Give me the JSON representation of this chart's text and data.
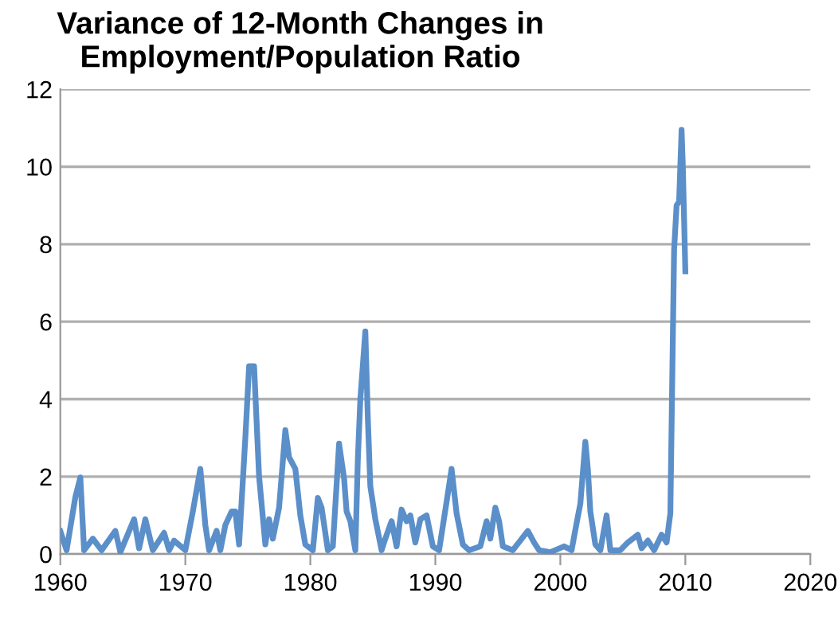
{
  "chart_data": {
    "type": "line",
    "title": "Variance of 12-Month Changes in\nEmployment/Population Ratio",
    "series": [
      {
        "color": "#5b8fc9",
        "x": [
          1960.0,
          1960.5,
          1961.2,
          1961.6,
          1961.9,
          1962.6,
          1963.3,
          1964.4,
          1964.8,
          1965.9,
          1966.3,
          1966.8,
          1967.4,
          1968.3,
          1968.7,
          1969.1,
          1970.0,
          1970.6,
          1971.2,
          1971.6,
          1971.9,
          1972.5,
          1972.8,
          1973.2,
          1973.7,
          1974.0,
          1974.3,
          1974.8,
          1975.1,
          1975.5,
          1975.9,
          1976.4,
          1976.7,
          1977.0,
          1977.5,
          1978.0,
          1978.3,
          1978.8,
          1979.2,
          1979.6,
          1980.2,
          1980.6,
          1980.9,
          1981.4,
          1981.8,
          1982.3,
          1982.7,
          1982.9,
          1983.2,
          1983.6,
          1983.8,
          1984.0,
          1984.4,
          1984.6,
          1984.8,
          1985.2,
          1985.7,
          1986.0,
          1986.5,
          1986.9,
          1987.3,
          1987.7,
          1988.0,
          1988.4,
          1988.8,
          1989.3,
          1989.8,
          1990.3,
          1990.9,
          1991.3,
          1991.7,
          1992.2,
          1992.7,
          1993.6,
          1994.1,
          1994.4,
          1994.8,
          1995.1,
          1995.4,
          1996.2,
          1996.8,
          1997.4,
          1997.9,
          1998.3,
          1999.2,
          2000.3,
          2000.9,
          2001.3,
          2001.6,
          2002.0,
          2002.2,
          2002.4,
          2002.8,
          2003.2,
          2003.7,
          2004.0,
          2004.8,
          2005.4,
          2006.2,
          2006.5,
          2007.0,
          2007.5,
          2008.1,
          2008.5,
          2008.8,
          2009.1,
          2009.3,
          2009.5,
          2009.7,
          2009.8,
          2010.0
        ],
        "values": [
          0.59,
          0.1,
          1.47,
          1.98,
          0.1,
          0.4,
          0.1,
          0.6,
          0.05,
          0.9,
          0.15,
          0.9,
          0.1,
          0.55,
          0.1,
          0.35,
          0.1,
          1.1,
          2.2,
          0.75,
          0.1,
          0.6,
          0.1,
          0.75,
          1.1,
          1.1,
          0.25,
          3.0,
          4.85,
          4.85,
          2.0,
          0.25,
          0.9,
          0.4,
          1.2,
          3.2,
          2.5,
          2.2,
          1.0,
          0.25,
          0.1,
          1.45,
          1.2,
          0.1,
          0.2,
          2.85,
          1.95,
          1.1,
          0.85,
          0.1,
          2.45,
          4.0,
          5.75,
          3.5,
          1.75,
          0.9,
          0.1,
          0.4,
          0.85,
          0.2,
          1.15,
          0.85,
          1.0,
          0.3,
          0.9,
          1.0,
          0.2,
          0.1,
          1.35,
          2.2,
          1.05,
          0.25,
          0.1,
          0.2,
          0.85,
          0.4,
          1.2,
          0.85,
          0.2,
          0.1,
          0.35,
          0.6,
          0.3,
          0.1,
          0.05,
          0.2,
          0.1,
          0.8,
          1.3,
          2.9,
          2.2,
          1.1,
          0.25,
          0.1,
          1.0,
          0.1,
          0.1,
          0.3,
          0.5,
          0.15,
          0.35,
          0.1,
          0.5,
          0.3,
          1.05,
          7.85,
          9.0,
          9.1,
          10.95,
          10.0,
          7.3
        ]
      }
    ],
    "xlim": [
      1960,
      2020
    ],
    "xticks": [
      1960,
      1970,
      1980,
      1990,
      2000,
      2010,
      2020
    ],
    "ylim": [
      0,
      12
    ],
    "yticks": [
      0,
      2,
      4,
      6,
      8,
      10,
      12
    ],
    "grid": "y",
    "legend": false,
    "marker": "none",
    "line_style": "solid"
  }
}
